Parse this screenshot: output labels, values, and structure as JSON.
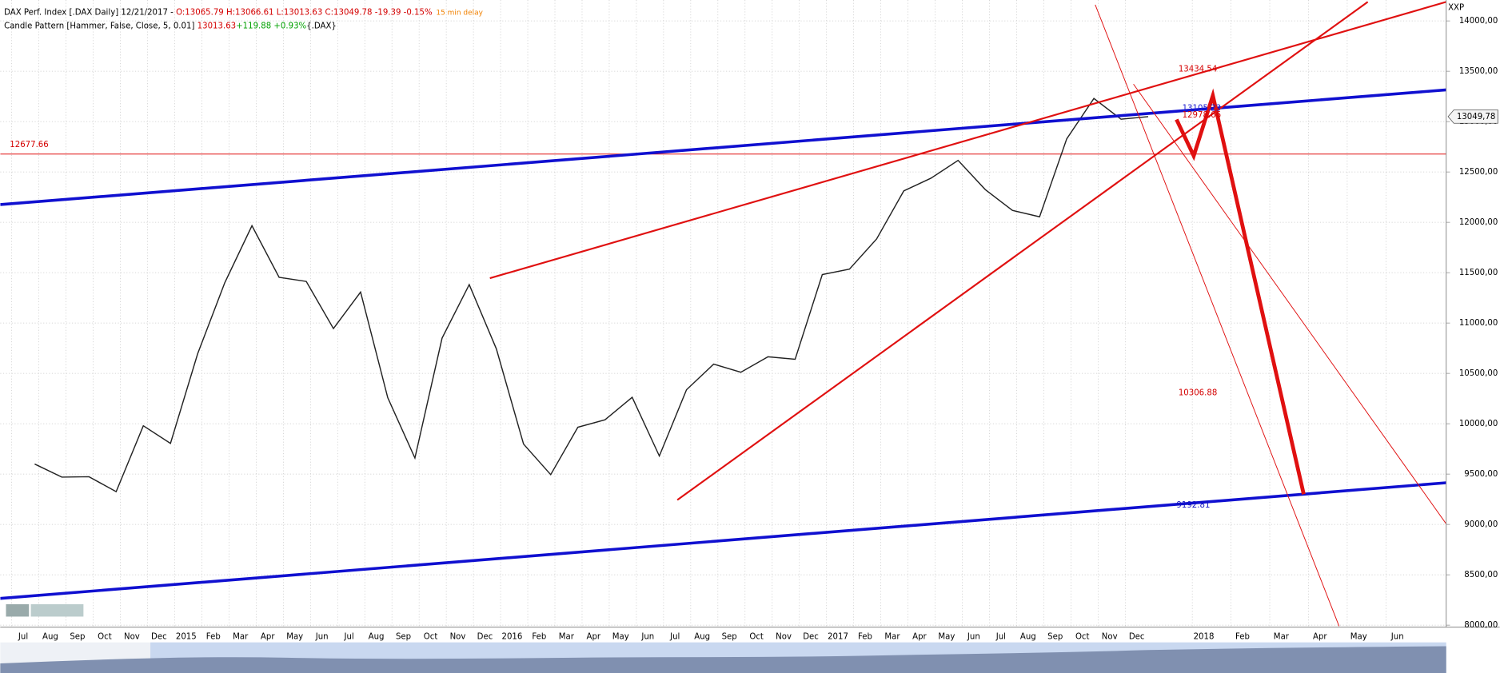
{
  "header": {
    "line1": [
      {
        "text": "DAX Perf. Index [.DAX Daily]  12/21/2017 - ",
        "color": "#000000"
      },
      {
        "text": "O:13065.79 H:13066.61 L:13013.63 C:13049.78 -19.39 -0.15%",
        "color": "#d40000"
      },
      {
        "text": "15 min delay",
        "color": "#f08000"
      }
    ],
    "line2": [
      {
        "text": "Candle Pattern [Hammer, False, Close, 5, 0.01] ",
        "color": "#000000"
      },
      {
        "text": "13013.63",
        "color": "#d40000"
      },
      {
        "text": "+119.88 +0.93%",
        "color": "#00a000"
      },
      {
        "text": "{.DAX}",
        "color": "#000000"
      }
    ]
  },
  "chart_data": {
    "type": "line",
    "categories": [
      "Jul",
      "Aug",
      "Sep",
      "Oct",
      "Nov",
      "Dec",
      "2015",
      "Feb",
      "Mar",
      "Apr",
      "May",
      "Jun",
      "Jul",
      "Aug",
      "Sep",
      "Oct",
      "Nov",
      "Dec",
      "2016",
      "Feb",
      "Mar",
      "Apr",
      "May",
      "Jun",
      "Jul",
      "Aug",
      "Sep",
      "Oct",
      "Nov",
      "Dec",
      "2017",
      "Feb",
      "Mar",
      "Apr",
      "May",
      "Jun",
      "Jul",
      "Aug",
      "Sep",
      "Oct",
      "Nov",
      "Dec",
      "2018",
      "Feb",
      "Mar",
      "Apr",
      "May",
      "Jun"
    ],
    "series": [
      {
        "color": "#222222",
        "values": [
          9600,
          9470,
          9474,
          9326,
          9980,
          9805,
          10694,
          11401,
          11966,
          11454,
          11413,
          10945,
          11308,
          10259,
          9660,
          10850,
          11382,
          10743,
          9798,
          9495,
          9965,
          10039,
          10262,
          9680,
          10337,
          10592,
          10511,
          10665,
          10640,
          11481,
          11535,
          11834,
          12312,
          12438,
          12615,
          12325,
          12118,
          12055,
          12829,
          13230,
          13024,
          13049.78,
          null,
          null,
          null,
          null,
          null,
          null
        ]
      }
    ],
    "ylim": [
      7990,
      14160
    ],
    "yticks": [
      {
        "value": 8000,
        "label": "8000,00"
      },
      {
        "value": 8500,
        "label": "8500,00"
      },
      {
        "value": 9000,
        "label": "9000,00"
      },
      {
        "value": 9500,
        "label": "9500,00"
      },
      {
        "value": 10000,
        "label": "10000,00"
      },
      {
        "value": 10500,
        "label": "10500,00"
      },
      {
        "value": 11000,
        "label": "11000,00"
      },
      {
        "value": 11500,
        "label": "11500,00"
      },
      {
        "value": 12000,
        "label": "12000,00"
      },
      {
        "value": 12500,
        "label": "12500,00"
      },
      {
        "value": 13000,
        "label": "13000,00"
      },
      {
        "value": 13500,
        "label": "13500,00"
      },
      {
        "value": 14000,
        "label": "14000,00"
      }
    ],
    "grid": true,
    "axis_title": "XXP",
    "last_price": {
      "value": 13049.78,
      "label": "13049,78"
    },
    "annotations": [
      {
        "value": 12677.66,
        "color": "#d40000"
      },
      {
        "value": 13434.54,
        "color": "#d40000"
      },
      {
        "value": 13105.23,
        "color": "#2020d0"
      },
      {
        "value": 12978.66,
        "color": "#d40000"
      },
      {
        "value": 10306.88,
        "color": "#d40000"
      },
      {
        "value": 9192.81,
        "color": "#1010c0"
      }
    ]
  }
}
